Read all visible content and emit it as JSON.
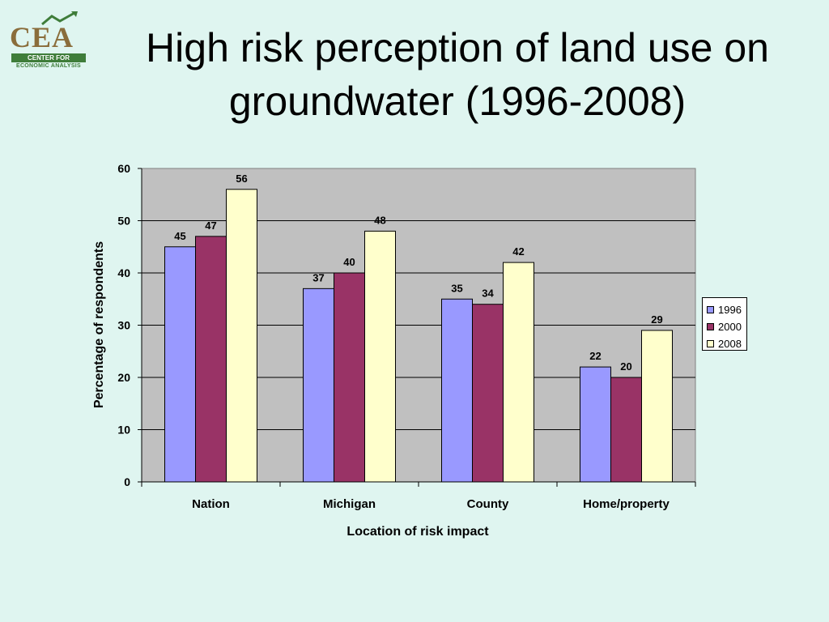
{
  "logo": {
    "text": "CEA",
    "band": "CENTER FOR",
    "sub": "ECONOMIC ANALYSIS"
  },
  "title": {
    "line1": "High risk perception of land use on",
    "line2": "groundwater (1996-2008)"
  },
  "colors": {
    "background": "#dff5f0",
    "plot_area": "#c0c0c0",
    "s1996": "#9999ff",
    "s2000": "#993366",
    "s2008": "#ffffcc"
  },
  "chart_data": {
    "type": "bar",
    "title": "High risk perception of land use on groundwater (1996-2008)",
    "xlabel": "Location of risk impact",
    "ylabel": "Percentage of respondents",
    "categories": [
      "Nation",
      "Michigan",
      "County",
      "Home/property"
    ],
    "series": [
      {
        "name": "1996",
        "values": [
          45,
          37,
          35,
          22
        ],
        "color": "#9999ff"
      },
      {
        "name": "2000",
        "values": [
          47,
          40,
          34,
          20
        ],
        "color": "#993366"
      },
      {
        "name": "2008",
        "values": [
          56,
          48,
          42,
          29
        ],
        "color": "#ffffcc"
      }
    ],
    "ylim": [
      0,
      60
    ],
    "yticks": [
      0,
      10,
      20,
      30,
      40,
      50,
      60
    ],
    "grid": true,
    "legend": "right",
    "data_labels": true
  }
}
